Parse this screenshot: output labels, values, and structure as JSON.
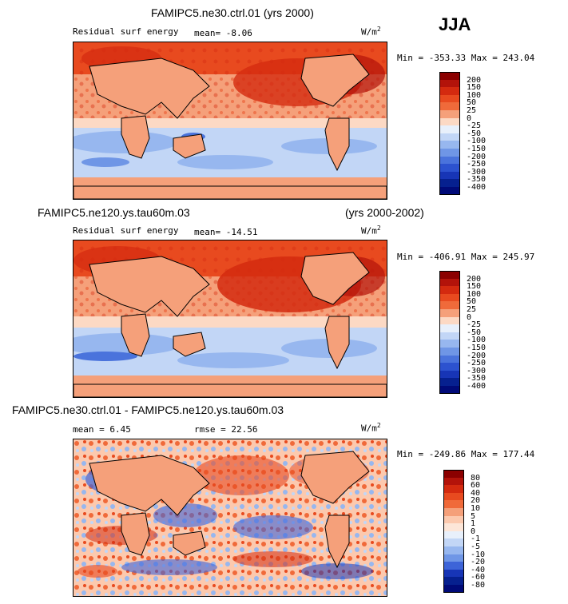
{
  "season": "JJA",
  "panels": [
    {
      "title": "FAMIPC5.ne30.ctrl.01 (yrs 2000)",
      "title_right": "",
      "variable": "Residual surf energy",
      "stat1": "mean=  -8.06",
      "stat2": "",
      "units_base": "W/m",
      "units_exp": "2",
      "minmax": "Min = -353.33 Max = 243.04",
      "legend_levels": [
        "200",
        "150",
        "100",
        "50",
        "25",
        "0",
        "-25",
        "-50",
        "-100",
        "-150",
        "-200",
        "-250",
        "-300",
        "-350",
        "-400"
      ],
      "legend_colors": [
        "#8b0000",
        "#b3130a",
        "#d42a0f",
        "#e84a1f",
        "#f06a3a",
        "#f5a07a",
        "#fcd9c4",
        "#e8f0fb",
        "#c2d6f6",
        "#97b7ef",
        "#6f96e6",
        "#4a73dc",
        "#2c52cf",
        "#1735b6",
        "#06208f",
        "#000a78"
      ]
    },
    {
      "title": "FAMIPC5.ne120.ys.tau60m.03",
      "title_right": "(yrs 2000-2002)",
      "variable": "Residual surf energy",
      "stat1": "mean= -14.51",
      "stat2": "",
      "units_base": "W/m",
      "units_exp": "2",
      "minmax": "Min = -406.91 Max = 245.97",
      "legend_levels": [
        "200",
        "150",
        "100",
        "50",
        "25",
        "0",
        "-25",
        "-50",
        "-100",
        "-150",
        "-200",
        "-250",
        "-300",
        "-350",
        "-400"
      ],
      "legend_colors": [
        "#8b0000",
        "#b3130a",
        "#d42a0f",
        "#e84a1f",
        "#f06a3a",
        "#f5a07a",
        "#fcd9c4",
        "#e8f0fb",
        "#c2d6f6",
        "#97b7ef",
        "#6f96e6",
        "#4a73dc",
        "#2c52cf",
        "#1735b6",
        "#06208f",
        "#000a78"
      ]
    },
    {
      "title": "FAMIPC5.ne30.ctrl.01 - FAMIPC5.ne120.ys.tau60m.03",
      "title_right": "",
      "variable": "",
      "stat1": "mean =    6.45",
      "stat2": "rmse =  22.56",
      "units_base": "W/m",
      "units_exp": "2",
      "minmax": "Min = -249.86 Max = 177.44",
      "legend_levels": [
        "80",
        "60",
        "40",
        "20",
        "10",
        "5",
        "1",
        "0",
        "-1",
        "-5",
        "-10",
        "-20",
        "-40",
        "-60",
        "-80"
      ],
      "legend_colors": [
        "#8b0000",
        "#b3130a",
        "#d42a0f",
        "#e84a1f",
        "#f06a3a",
        "#f5a07a",
        "#fcc9ae",
        "#fde6d8",
        "#e8f0fb",
        "#c2d6f6",
        "#97b7ef",
        "#6f96e6",
        "#3d64d8",
        "#1735b6",
        "#06208f",
        "#000a78"
      ]
    }
  ]
}
